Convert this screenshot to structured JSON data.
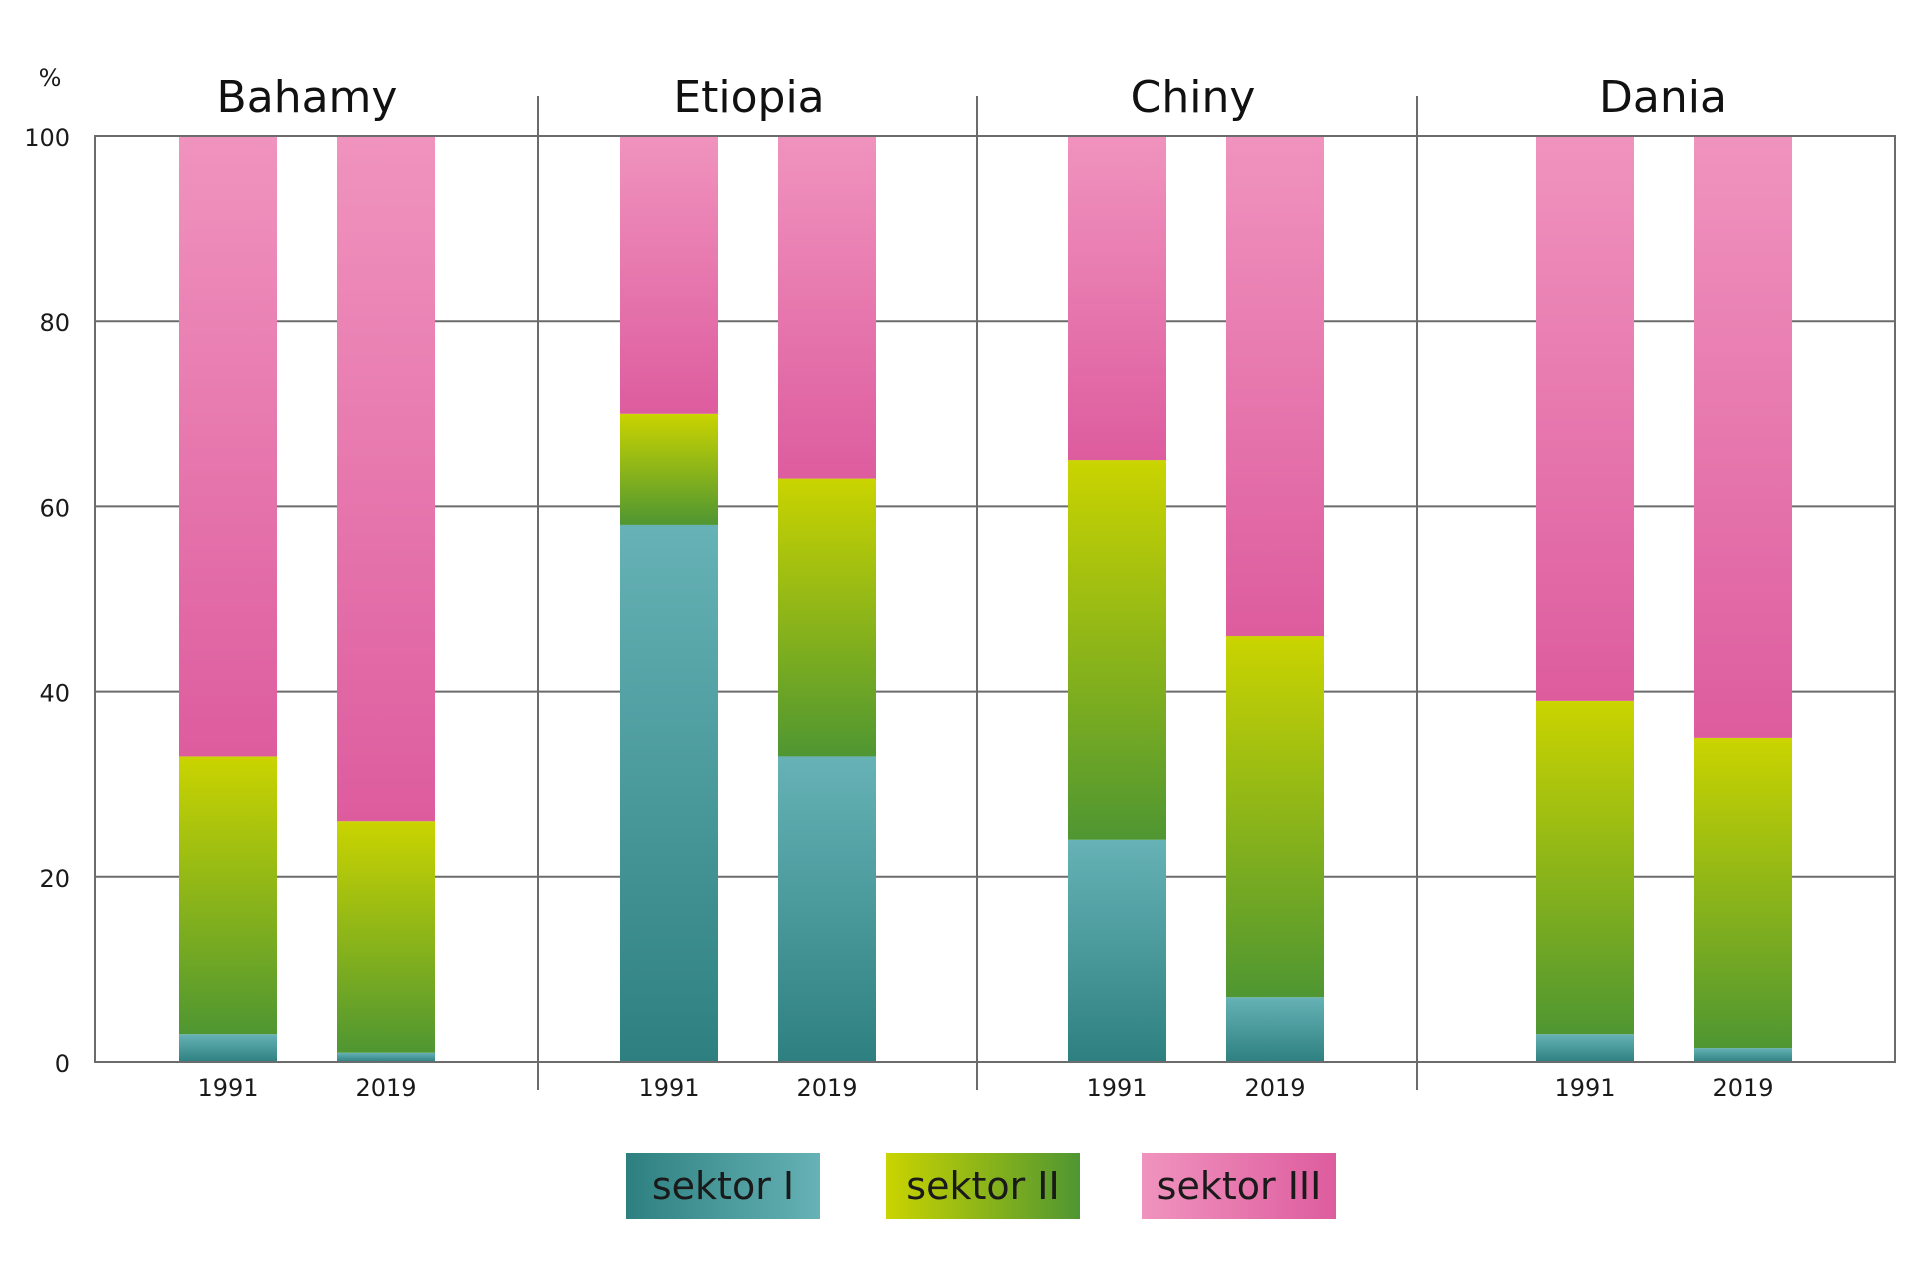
{
  "chart_data": {
    "type": "bar",
    "stacked": true,
    "unit_label": "%",
    "ylim": [
      0,
      100
    ],
    "y_ticks": [
      0,
      20,
      40,
      60,
      80,
      100
    ],
    "grid": true,
    "series": [
      {
        "name": "sektor I",
        "key": "s1",
        "color_dark": "#2E8080",
        "color_light": "#66B2B6"
      },
      {
        "name": "sektor II",
        "key": "s2",
        "color_dark": "#4F9632",
        "color_light": "#CAD400"
      },
      {
        "name": "sektor III",
        "key": "s3",
        "color_dark": "#DD5C9E",
        "color_light": "#F093BE"
      }
    ],
    "groups": [
      {
        "name": "Bahamy",
        "bars": [
          {
            "year": "1991",
            "s1": 3,
            "s2": 30,
            "s3": 67
          },
          {
            "year": "2019",
            "s1": 1,
            "s2": 25,
            "s3": 74
          }
        ]
      },
      {
        "name": "Etiopia",
        "bars": [
          {
            "year": "1991",
            "s1": 58,
            "s2": 12,
            "s3": 30
          },
          {
            "year": "2019",
            "s1": 33,
            "s2": 30,
            "s3": 37
          }
        ]
      },
      {
        "name": "Chiny",
        "bars": [
          {
            "year": "1991",
            "s1": 24,
            "s2": 41,
            "s3": 35
          },
          {
            "year": "2019",
            "s1": 7,
            "s2": 39,
            "s3": 54
          }
        ]
      },
      {
        "name": "Dania",
        "bars": [
          {
            "year": "1991",
            "s1": 3,
            "s2": 36,
            "s3": 61
          },
          {
            "year": "2019",
            "s1": 1.5,
            "s2": 33.5,
            "s3": 65
          }
        ]
      }
    ]
  }
}
